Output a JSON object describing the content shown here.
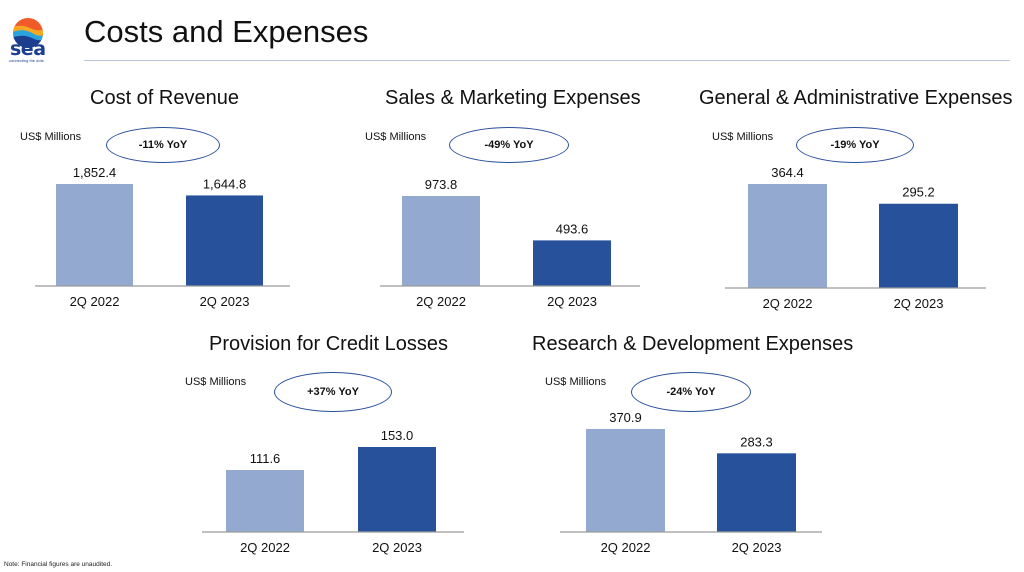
{
  "logo": {
    "word": "sea",
    "tagline": "connecting the dots"
  },
  "page_title": "Costs and Expenses",
  "note": "Note: Financial figures are unaudited.",
  "colors": {
    "bar_2022": "#93a9d0",
    "bar_2023": "#27529b",
    "ellipse": "#2a4f9a",
    "axis": "#9a9a9a"
  },
  "chart_data": [
    {
      "type": "bar",
      "title": "Cost of Revenue",
      "unit": "US$ Millions",
      "yoy": "-11% YoY",
      "categories": [
        "2Q 2022",
        "2Q 2023"
      ],
      "values": [
        1852.4,
        1644.8
      ],
      "labels": [
        "1,852.4",
        "1,644.8"
      ]
    },
    {
      "type": "bar",
      "title": "Sales & Marketing Expenses",
      "unit": "US$ Millions",
      "yoy": "-49% YoY",
      "categories": [
        "2Q 2022",
        "2Q 2023"
      ],
      "values": [
        973.8,
        493.6
      ],
      "labels": [
        "973.8",
        "493.6"
      ]
    },
    {
      "type": "bar",
      "title": "General & Administrative Expenses",
      "unit": "US$ Millions",
      "yoy": "-19% YoY",
      "categories": [
        "2Q 2022",
        "2Q 2023"
      ],
      "values": [
        364.4,
        295.2
      ],
      "labels": [
        "364.4",
        "295.2"
      ]
    },
    {
      "type": "bar",
      "title": "Provision for Credit Losses",
      "unit": "US$ Millions",
      "yoy": "+37% YoY",
      "categories": [
        "2Q 2022",
        "2Q 2023"
      ],
      "values": [
        111.6,
        153.0
      ],
      "labels": [
        "111.6",
        "153.0"
      ]
    },
    {
      "type": "bar",
      "title": "Research & Development Expenses",
      "unit": "US$ Millions",
      "yoy": "-24% YoY",
      "categories": [
        "2Q 2022",
        "2Q 2023"
      ],
      "values": [
        370.9,
        283.3
      ],
      "labels": [
        "370.9",
        "283.3"
      ]
    }
  ]
}
